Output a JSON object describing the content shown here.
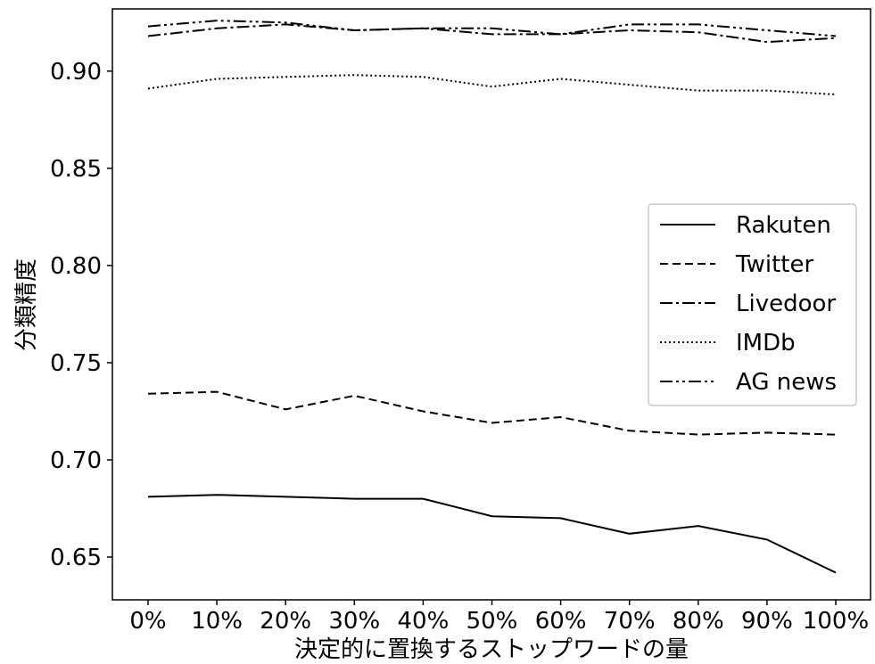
{
  "chart_data": {
    "type": "line",
    "xlabel": "決定的に置換するストップワードの量",
    "ylabel": "分類精度",
    "categories": [
      "0%",
      "10%",
      "20%",
      "30%",
      "40%",
      "50%",
      "60%",
      "70%",
      "80%",
      "90%",
      "100%"
    ],
    "y_ticks": [
      "0.65",
      "0.70",
      "0.75",
      "0.80",
      "0.85",
      "0.90"
    ],
    "ylim": [
      0.628,
      0.932
    ],
    "grid": false,
    "legend_position": "center-right",
    "series": [
      {
        "name": "Rakuten",
        "dash": "solid",
        "values": [
          0.681,
          0.682,
          0.681,
          0.68,
          0.68,
          0.671,
          0.67,
          0.662,
          0.666,
          0.659,
          0.642
        ]
      },
      {
        "name": "Twitter",
        "dash": "dashed",
        "values": [
          0.734,
          0.735,
          0.726,
          0.733,
          0.725,
          0.719,
          0.722,
          0.715,
          0.713,
          0.714,
          0.713
        ]
      },
      {
        "name": "Livedoor",
        "dash": "dashdot",
        "values": [
          0.918,
          0.922,
          0.924,
          0.921,
          0.922,
          0.919,
          0.919,
          0.921,
          0.92,
          0.915,
          0.917
        ]
      },
      {
        "name": "IMDb",
        "dash": "dotted",
        "values": [
          0.891,
          0.896,
          0.897,
          0.898,
          0.897,
          0.892,
          0.896,
          0.893,
          0.89,
          0.89,
          0.888
        ]
      },
      {
        "name": "AG news",
        "dash": "dashdotdot",
        "values": [
          0.923,
          0.926,
          0.925,
          0.921,
          0.922,
          0.922,
          0.919,
          0.924,
          0.924,
          0.921,
          0.918
        ]
      }
    ]
  }
}
